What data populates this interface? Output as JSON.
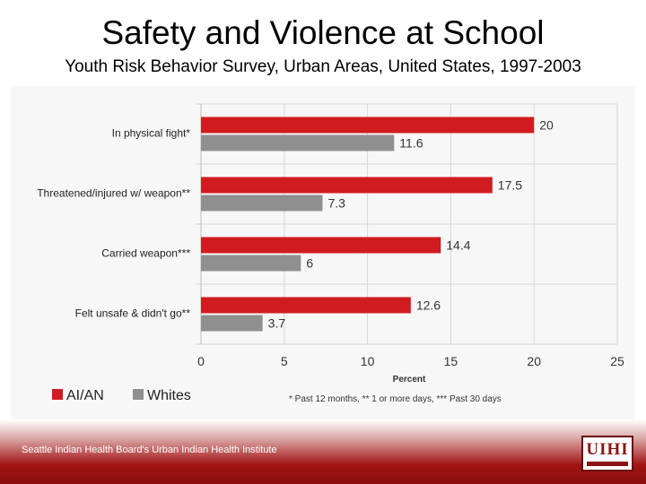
{
  "header": {
    "title": "Safety and Violence at School",
    "subtitle": "Youth Risk Behavior Survey, Urban Areas, United States, 1997-2003"
  },
  "footer": {
    "text": "Seattle Indian Health Board's Urban Indian Health Institute",
    "logo_text": "UIHI"
  },
  "colors": {
    "ai_an": "#d01c1f",
    "whites": "#8f8f8f",
    "accent": "#a31515"
  },
  "chart_data": {
    "type": "bar",
    "orientation": "horizontal",
    "categories": [
      "In physical fight*",
      "Threatened/injured w/ weapon**",
      "Carried weapon***",
      "Felt unsafe & didn't go**"
    ],
    "series": [
      {
        "name": "AI/AN",
        "values": [
          20,
          17.5,
          14.4,
          12.6
        ]
      },
      {
        "name": "Whites",
        "values": [
          11.6,
          7.3,
          6,
          3.7
        ]
      }
    ],
    "xlabel": "Percent",
    "xlim": [
      0,
      25
    ],
    "xticks": [
      0,
      5,
      10,
      15,
      20,
      25
    ],
    "grid": true,
    "legend": "bottom-left",
    "footnote": "* Past 12 months, ** 1 or more days, *** Past 30 days"
  }
}
